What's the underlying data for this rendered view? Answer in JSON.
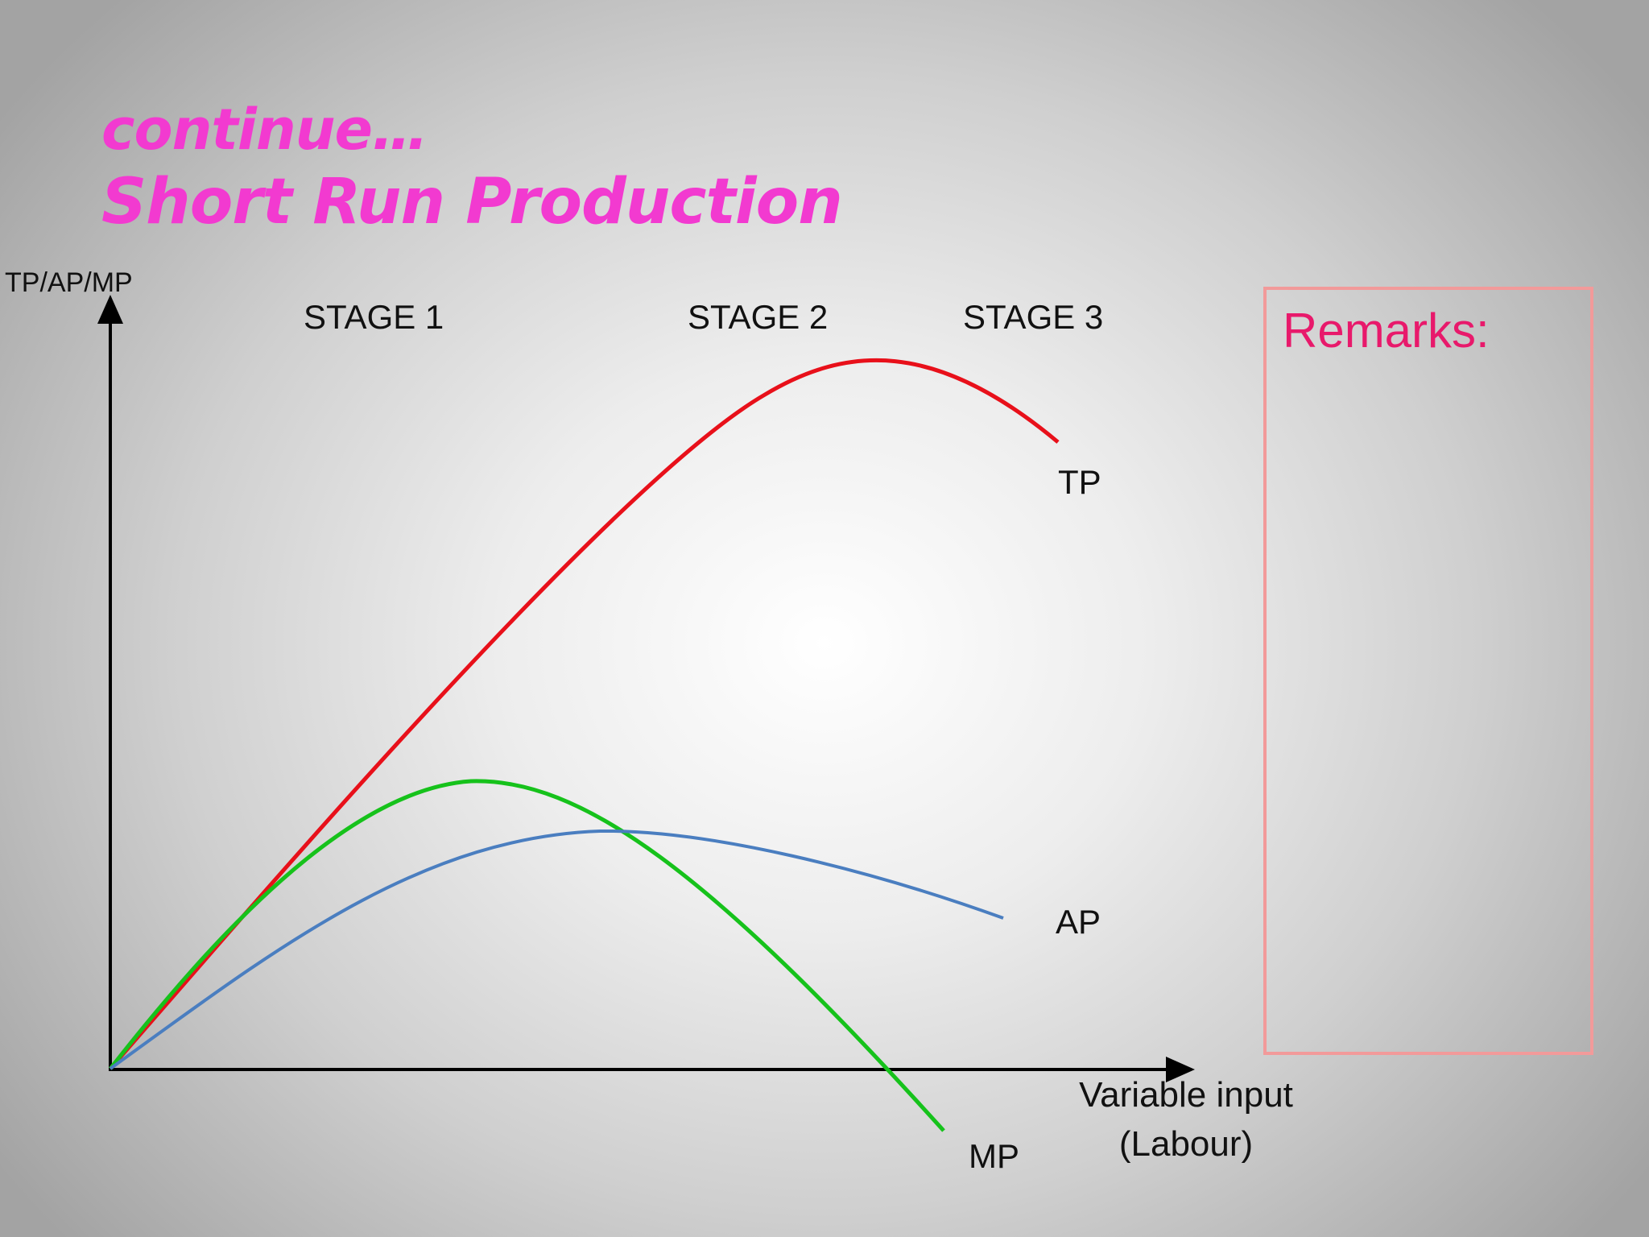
{
  "title": {
    "line1": "continue…",
    "line2": "Short Run Production"
  },
  "axes": {
    "y_label": "TP/AP/MP",
    "x_label_line1": "Variable input",
    "x_label_line2": "(Labour)"
  },
  "stages": [
    {
      "label": "STAGE 1"
    },
    {
      "label": "STAGE 2"
    },
    {
      "label": "STAGE 3"
    }
  ],
  "curves": [
    {
      "id": "tp",
      "label": "TP",
      "color": "#e8101a"
    },
    {
      "id": "mp",
      "label": "MP",
      "color": "#16c21b"
    },
    {
      "id": "ap",
      "label": "AP",
      "color": "#4a7ec0"
    }
  ],
  "remarks": {
    "label": "Remarks:"
  }
}
